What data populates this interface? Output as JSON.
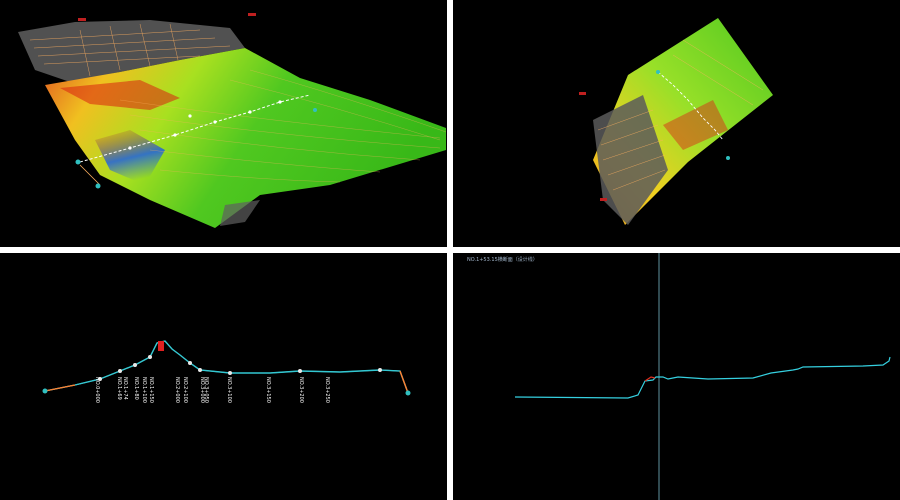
{
  "window": {
    "layout": "2x2 viewports"
  },
  "viewports": {
    "perspective": {
      "name": "3D perspective view"
    },
    "top": {
      "name": "3D top view"
    },
    "profile": {
      "name": "Longitudinal profile",
      "stations": [
        "NO.0+000",
        "NO.1+69",
        "NO.1+74",
        "NO.1+80",
        "NO.1+100",
        "NO.1+150",
        "NO.2+000",
        "NO.2+100",
        "NO.3+000",
        "NO.3+050",
        "NO.3+100",
        "NO.3+150",
        "NO.3+200",
        "NO.3+250"
      ]
    },
    "section": {
      "title": "NO.1+53.15横断面（设计线）"
    }
  },
  "colors": {
    "background": "#000000",
    "separator": "#ffffff",
    "terrain_high": "#d02010",
    "terrain_mid": "#f0d020",
    "terrain_low": "#40c020",
    "water": "#1a4fd8",
    "contour": "#ffb060",
    "profile_line": "#32c8d2",
    "section_line": "#35d0e0"
  }
}
